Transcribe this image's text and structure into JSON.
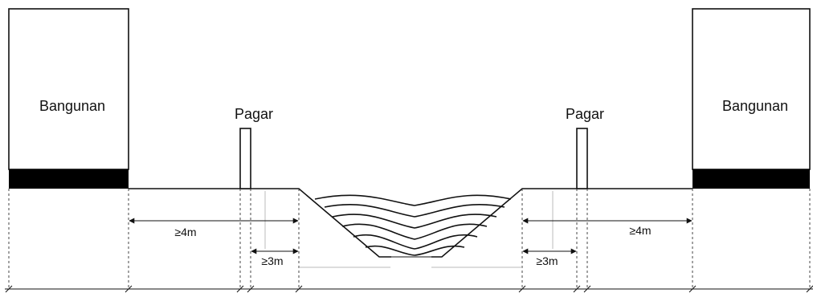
{
  "labels": {
    "building_left": "Bangunan",
    "building_right": "Bangunan",
    "fence_left": "Pagar",
    "fence_right": "Pagar",
    "dim_left_outer": "≥4m",
    "dim_left_inner": "≥3m",
    "dim_right_inner": "≥3m",
    "dim_right_outer": "≥4m"
  },
  "colors": {
    "line": "#111111",
    "foundation": "#000000",
    "guide": "#bbbbbb"
  }
}
